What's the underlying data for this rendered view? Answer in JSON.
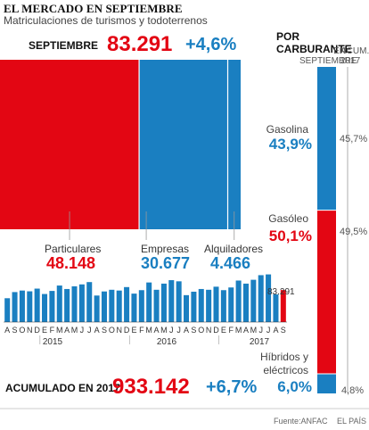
{
  "header": {
    "title": "EL MERCADO EN SEPTIEMBRE",
    "subtitle": "Matriculaciones de turismos y todoterrenos"
  },
  "september": {
    "label": "SEPTIEMBRE",
    "total": "83.291",
    "change": "+4,6%"
  },
  "accumulated": {
    "label": "ACUMULADO EN 2017",
    "total": "933.142",
    "change": "+6,7%"
  },
  "footer": {
    "source": "Fuente:ANFAC",
    "credit": "EL PAÍS"
  },
  "fuel_panel": {
    "title": "POR CARBURANTE",
    "col_month": "EN SEPTIEMBRE",
    "col_acum": "ACUM. 2017"
  },
  "colors": {
    "red": "#e30613",
    "blue": "#1a7fc1"
  },
  "chart_data": [
    {
      "type": "bar",
      "chart": "buyer-split",
      "categories": [
        "Particulares",
        "Empresas",
        "Alquiladores"
      ],
      "values": [
        48148,
        30677,
        4466
      ],
      "value_labels": [
        "48.148",
        "30.677",
        "4.466"
      ],
      "colors": [
        "#e30613",
        "#1a7fc1",
        "#1a7fc1"
      ]
    },
    {
      "type": "bar",
      "chart": "monthly-history",
      "categories": [
        "A",
        "S",
        "O",
        "N",
        "D",
        "E",
        "F",
        "M",
        "A",
        "M",
        "J",
        "J",
        "A",
        "S",
        "O",
        "N",
        "D",
        "E",
        "F",
        "M",
        "A",
        "M",
        "J",
        "J",
        "A",
        "S",
        "O",
        "N",
        "D",
        "E",
        "F",
        "M",
        "A",
        "M",
        "J",
        "J",
        "A",
        "S"
      ],
      "values": [
        62000,
        78000,
        82000,
        80000,
        87000,
        73000,
        81000,
        95000,
        86000,
        93000,
        98000,
        104000,
        69000,
        79600,
        84000,
        82000,
        91000,
        74000,
        83000,
        103000,
        84000,
        100000,
        109000,
        106000,
        70000,
        79000,
        86000,
        84000,
        92000,
        83000,
        90000,
        108000,
        100000,
        110000,
        122000,
        124000,
        72000,
        83291
      ],
      "year_labels": [
        "2015",
        "2016",
        "2017"
      ],
      "last_value_label": "83.291",
      "highlight_last": true,
      "colors": [
        "#1a7fc1",
        "#e30613"
      ]
    },
    {
      "type": "bar",
      "chart": "fuel-share",
      "categories": [
        "Gasolina",
        "Gasóleo",
        "Híbridos y eléctricos"
      ],
      "values": [
        43.9,
        50.1,
        6.0
      ],
      "value_labels": [
        "43,9%",
        "50,1%",
        "6,0%"
      ],
      "accumulated_labels": [
        "45,7%",
        "49,5%",
        "4,8%"
      ],
      "colors": [
        "#1a7fc1",
        "#e30613",
        "#1a7fc1"
      ]
    }
  ]
}
